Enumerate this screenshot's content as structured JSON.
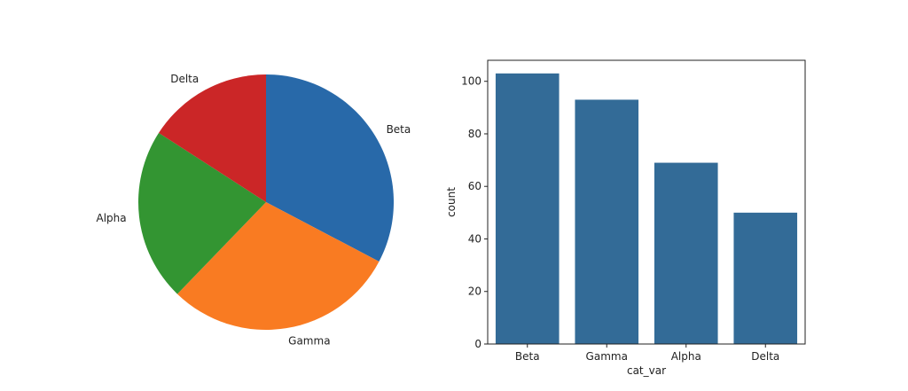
{
  "chart_data": [
    {
      "type": "pie",
      "title": "",
      "labels": [
        "Beta",
        "Gamma",
        "Alpha",
        "Delta"
      ],
      "values": [
        103,
        93,
        69,
        50
      ],
      "colors": [
        "#2869a9",
        "#f97b22",
        "#339532",
        "#cb2627"
      ],
      "start_angle_deg": 90,
      "direction": "clockwise"
    },
    {
      "type": "bar",
      "title": "",
      "categories": [
        "Beta",
        "Gamma",
        "Alpha",
        "Delta"
      ],
      "values": [
        103,
        93,
        69,
        50
      ],
      "xlabel": "cat_var",
      "ylabel": "count",
      "ylim": [
        0,
        108
      ],
      "yticks": [
        0,
        20,
        40,
        60,
        80,
        100
      ],
      "bar_color": "#336b97",
      "grid": false
    }
  ]
}
